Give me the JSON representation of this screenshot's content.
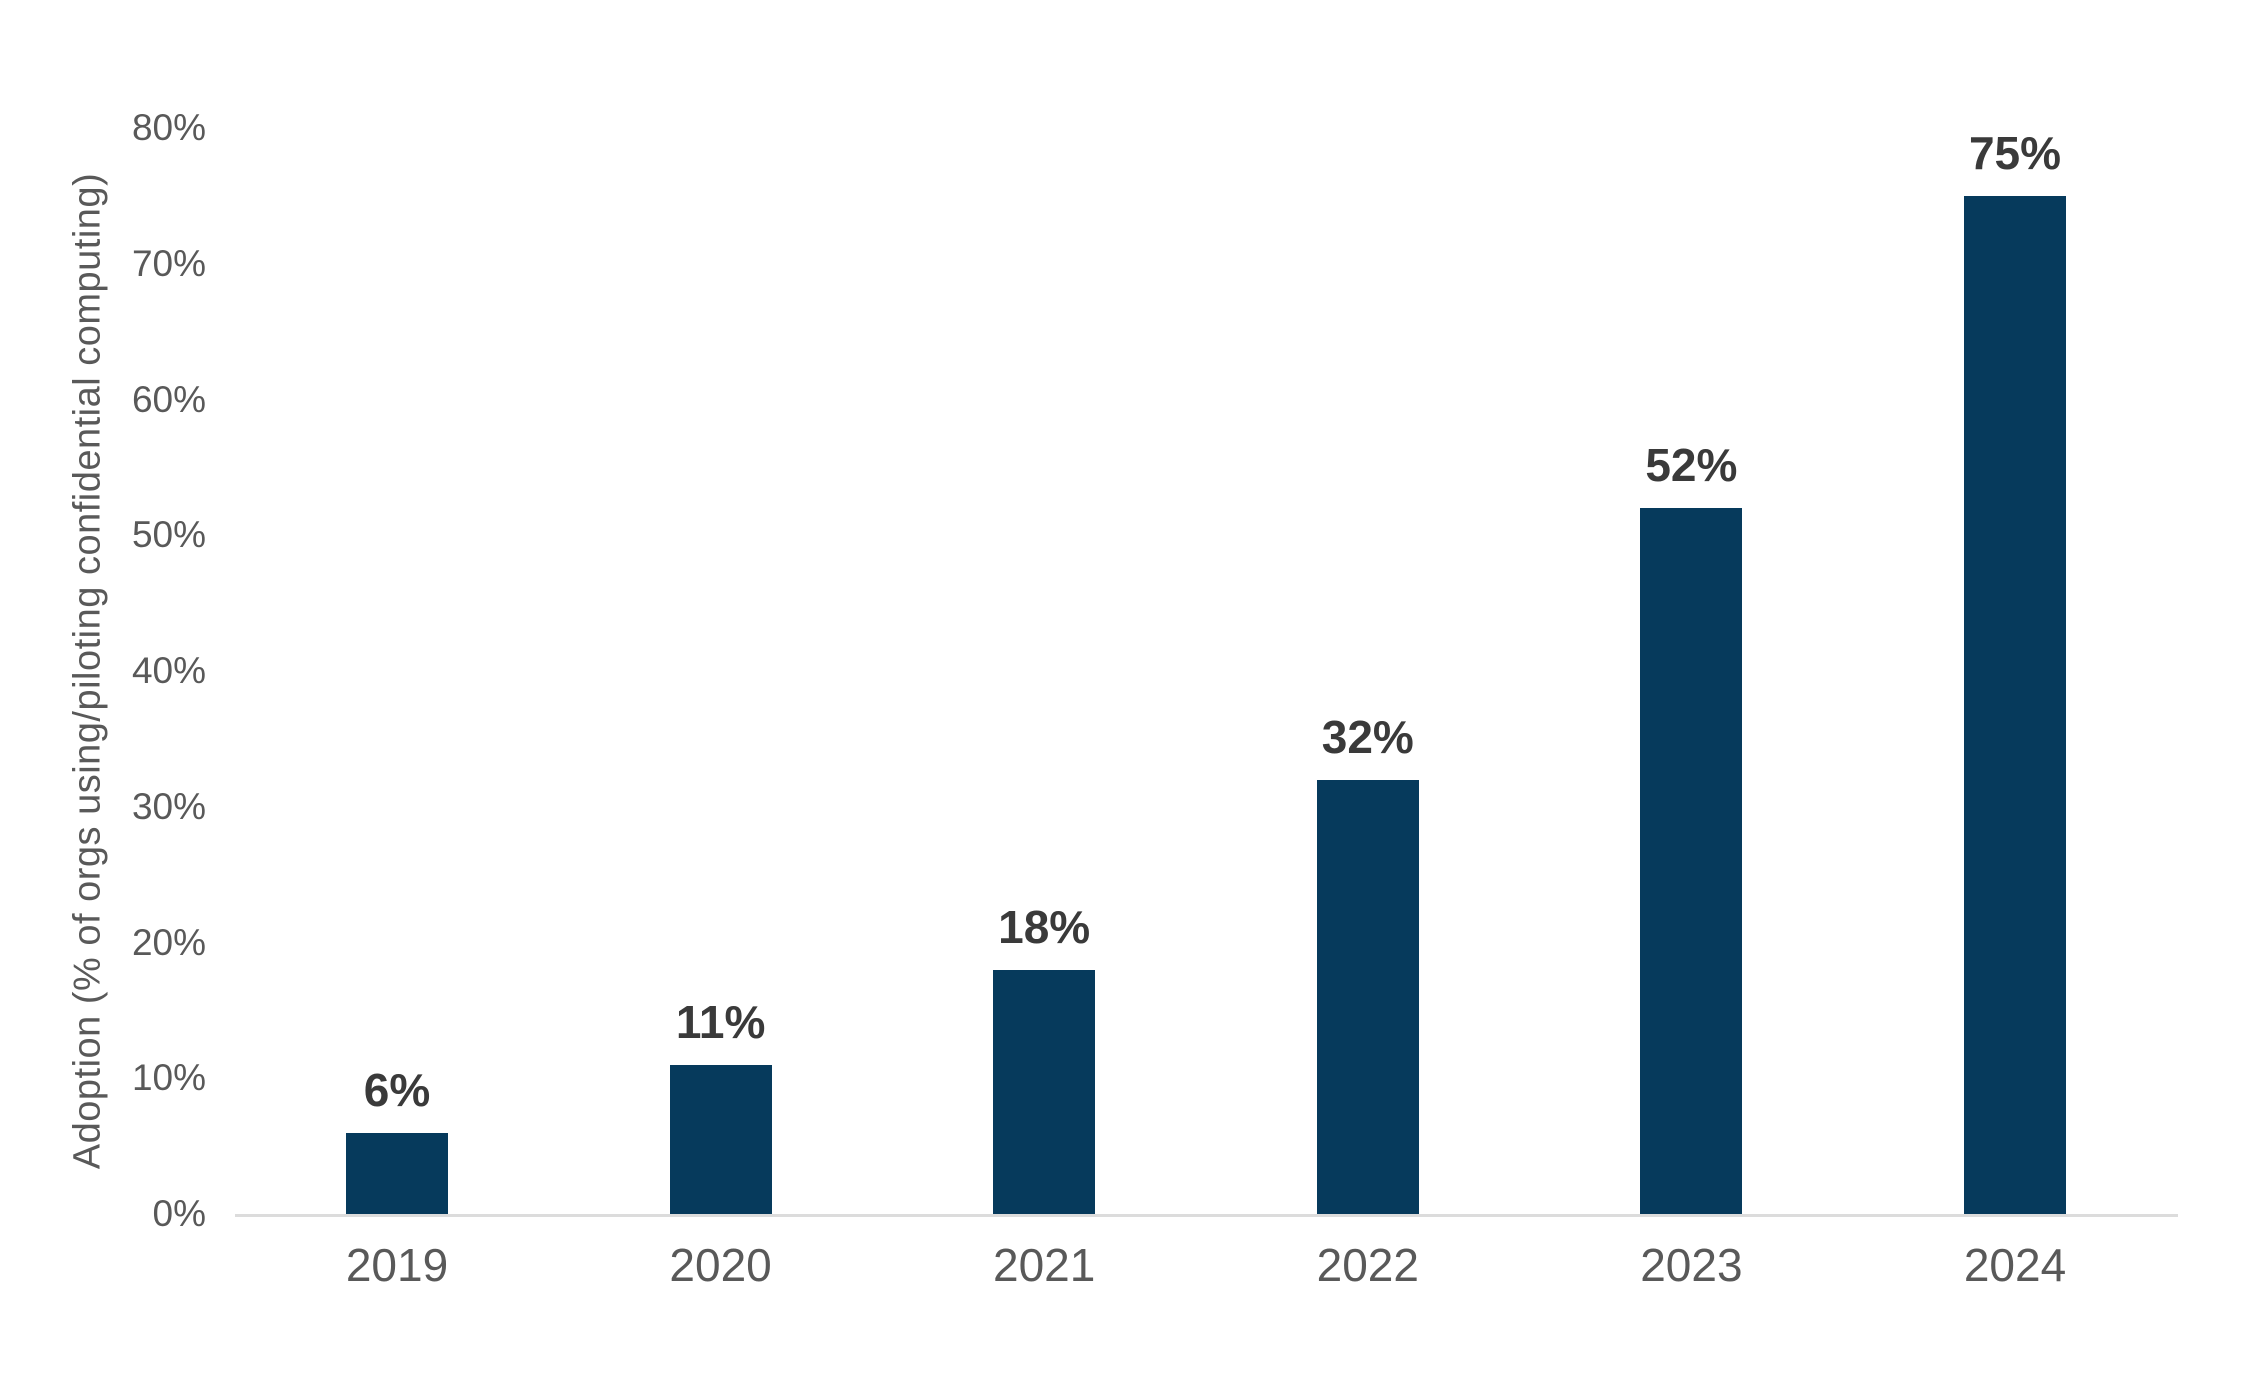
{
  "chart_data": {
    "type": "bar",
    "title": "",
    "xlabel": "",
    "ylabel": "Adoption (% of orgs using/piloting confidential computing)",
    "categories": [
      "2019",
      "2020",
      "2021",
      "2022",
      "2023",
      "2024"
    ],
    "values": [
      6,
      11,
      18,
      32,
      52,
      75
    ],
    "bar_labels": [
      "6%",
      "11%",
      "18%",
      "32%",
      "52%",
      "75%"
    ],
    "ylim": [
      0,
      80
    ],
    "yticks": [
      0,
      10,
      20,
      30,
      40,
      50,
      60,
      70,
      80
    ],
    "ytick_labels": [
      "0%",
      "10%",
      "20%",
      "30%",
      "40%",
      "50%",
      "60%",
      "70%",
      "80%"
    ],
    "grid": false,
    "legend": null,
    "colors": {
      "bar": "#063a5c",
      "value_label": "#3a3a3a",
      "tick_label": "#595959",
      "axis_line": "#dcdcdc",
      "background": "#ffffff"
    }
  }
}
